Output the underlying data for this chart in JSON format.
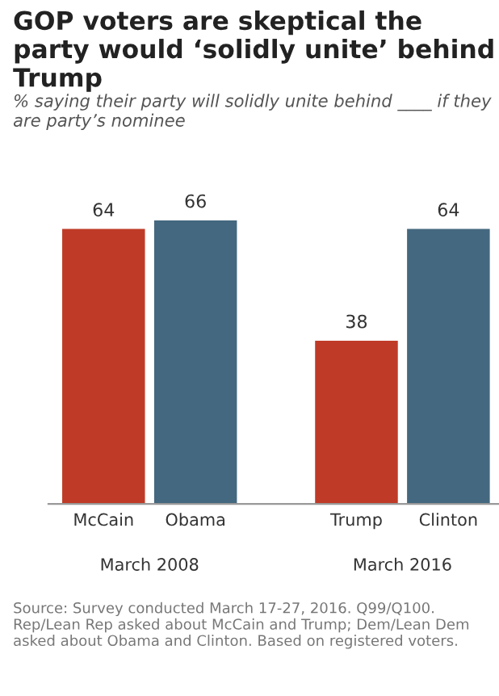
{
  "chart_data": {
    "type": "bar",
    "title": "GOP voters are skeptical the party would ‘solidly unite’ behind Trump",
    "subtitle": "% saying their party will solidly unite behind ____ if they are party’s nominee",
    "categories": [
      "McCain",
      "Obama",
      "Trump",
      "Clinton"
    ],
    "values": [
      64,
      66,
      38,
      64
    ],
    "colors": [
      "#bf3b27",
      "#44687f",
      "#bf3b27",
      "#44687f"
    ],
    "data_labels": true,
    "annotations": [
      "March 2008",
      "March 2016",
      "Source: Survey conducted March 17-27, 2016. Q99/Q100. Rep/Lean Rep asked about McCain and Trump; Dem/Lean Dem asked about Obama and Clinton. Based on registered voters."
    ]
  }
}
